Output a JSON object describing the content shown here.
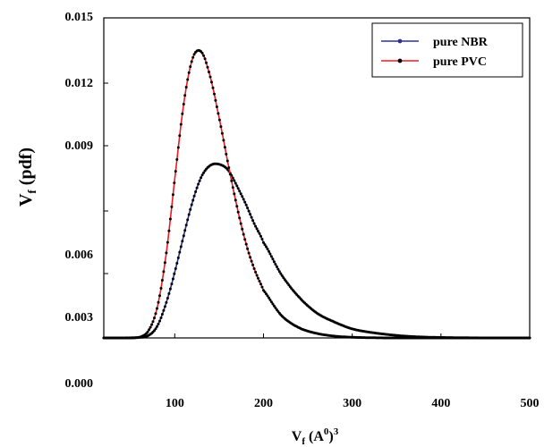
{
  "chart_data": {
    "type": "line",
    "xlabel_main": "V",
    "xlabel_sub": "f",
    "xlabel_rest": " (A",
    "xlabel_sup1": "0",
    "xlabel_close": ")",
    "xlabel_sup2": "3",
    "ylabel_main": "V",
    "ylabel_sub": "f",
    "ylabel_rest": " (pdf)",
    "xlim": [
      20,
      500
    ],
    "x_ticks": [
      100,
      200,
      300,
      400,
      500
    ],
    "y_ticks": [
      "0.015",
      "0.012",
      "0.009",
      "0.006",
      "0.003",
      "0.000"
    ],
    "legend_position": "top-right",
    "grid": false,
    "series": [
      {
        "name": "pure NBR",
        "color": "#2e3192",
        "x": [
          20,
          40,
          60,
          70,
          80,
          90,
          100,
          110,
          120,
          130,
          140,
          150,
          160,
          170,
          180,
          190,
          200,
          220,
          240,
          260,
          280,
          300,
          320,
          340,
          360,
          380,
          400,
          450,
          500
        ],
        "y": [
          0.0,
          0.0,
          2e-05,
          0.0001,
          0.0005,
          0.0015,
          0.0029,
          0.0045,
          0.006,
          0.0071,
          0.0076,
          0.00765,
          0.0074,
          0.0067,
          0.0059,
          0.005,
          0.0042,
          0.0028,
          0.0018,
          0.0011,
          0.0007,
          0.0004,
          0.00025,
          0.00015,
          8e-05,
          4e-05,
          2e-05,
          0.0,
          0.0
        ]
      },
      {
        "name": "pure PVC",
        "color": "#ed1c24",
        "x": [
          20,
          40,
          60,
          70,
          80,
          90,
          100,
          110,
          120,
          130,
          140,
          150,
          160,
          170,
          180,
          190,
          200,
          220,
          240,
          260,
          280,
          300,
          320,
          340,
          360,
          380,
          400,
          450,
          500
        ],
        "y": [
          0.0,
          0.0,
          3e-05,
          0.0003,
          0.0013,
          0.0036,
          0.007,
          0.0103,
          0.0123,
          0.0126,
          0.0115,
          0.0097,
          0.0077,
          0.0058,
          0.0042,
          0.003,
          0.0021,
          0.001,
          0.00045,
          0.0002,
          8e-05,
          3e-05,
          1e-05,
          0.0,
          0.0,
          0.0,
          0.0,
          0.0,
          0.0
        ]
      }
    ]
  }
}
